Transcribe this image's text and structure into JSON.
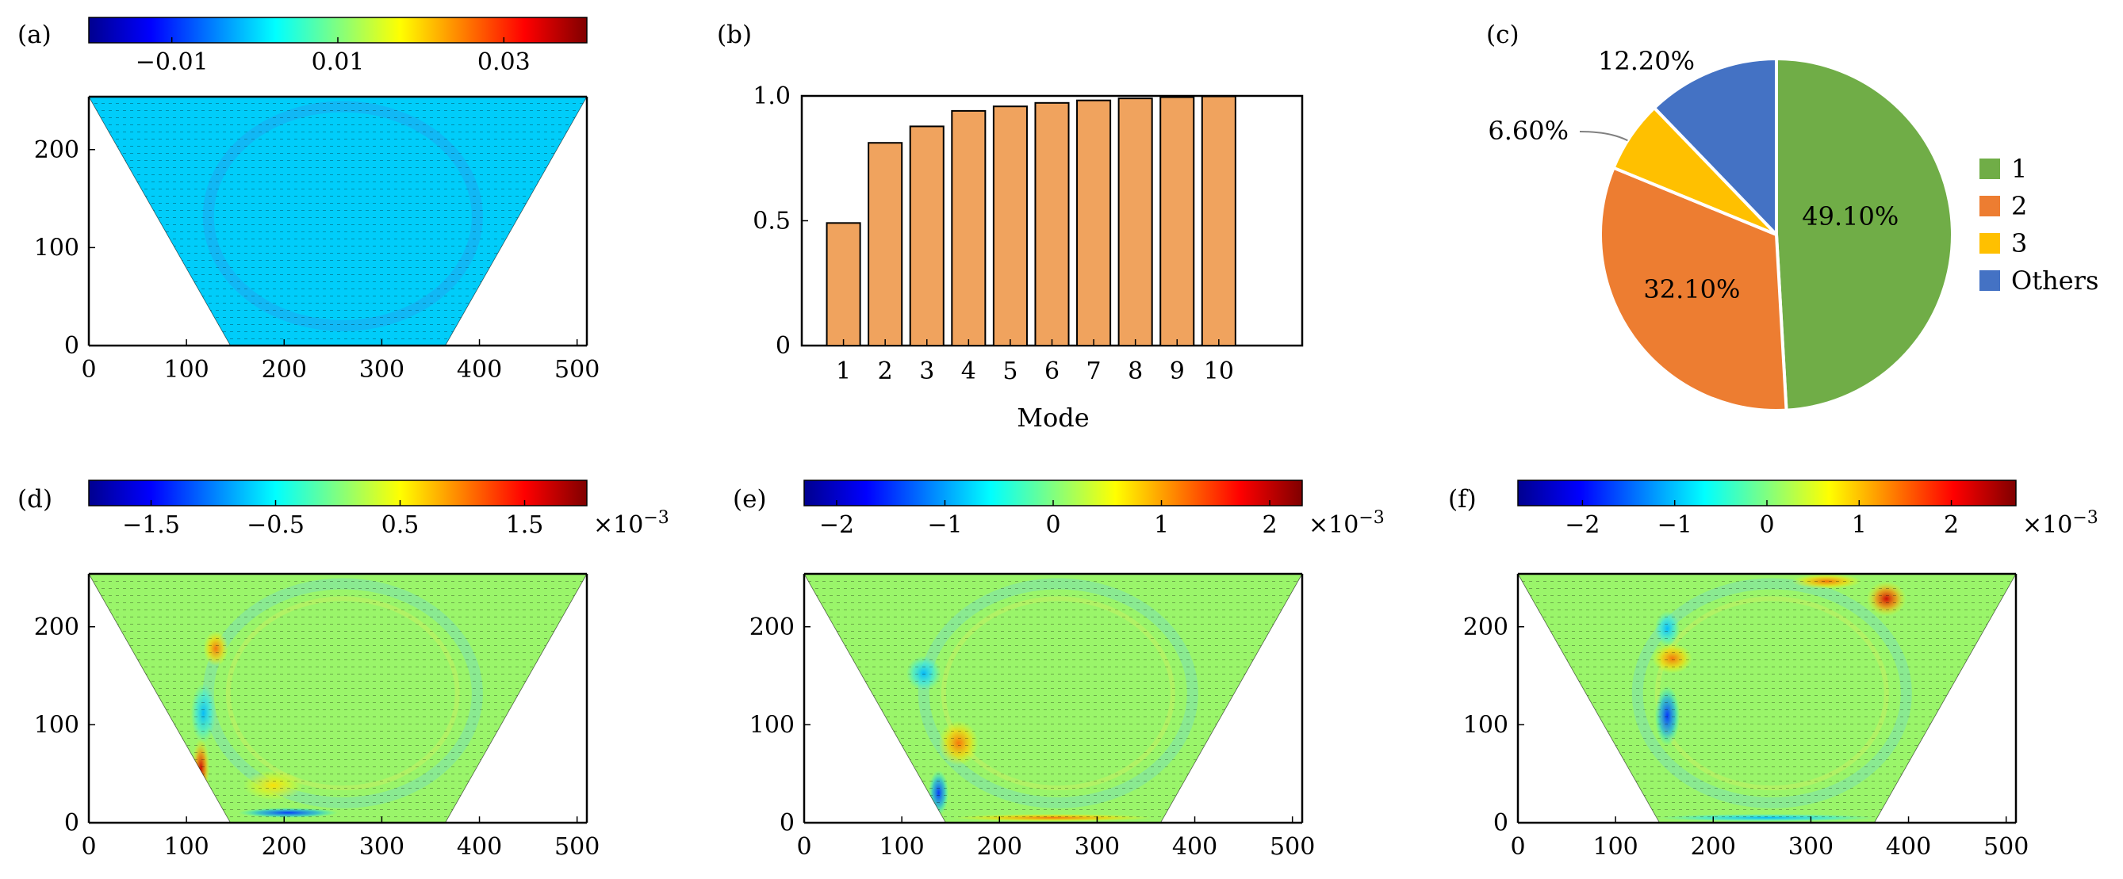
{
  "panels": [
    {
      "id": "a",
      "label": "(a)",
      "kind": "field",
      "colorbar": {
        "ticks": [
          "−0.01",
          "0.01",
          "0.03"
        ],
        "ticks_at": [
          -0.01,
          0.01,
          0.03
        ],
        "range": [
          -0.02,
          0.04
        ],
        "exponent_label": ""
      },
      "x_ticks": [
        "0",
        "100",
        "200",
        "300",
        "400",
        "500"
      ],
      "y_ticks": [
        "0",
        "100",
        "200"
      ],
      "x_range": [
        0,
        510
      ],
      "y_range": [
        0,
        254
      ],
      "field": "mean-flow",
      "base_color": "#00cdfa"
    },
    {
      "id": "d",
      "label": "(d)",
      "kind": "field",
      "colorbar": {
        "ticks": [
          "−1.5",
          "−0.5",
          "0.5",
          "1.5"
        ],
        "ticks_at": [
          -1.5,
          -0.5,
          0.5,
          1.5
        ],
        "range": [
          -2.0,
          2.0
        ],
        "exponent_label": "×10",
        "exponent_power": "−3"
      },
      "x_ticks": [
        "0",
        "100",
        "200",
        "300",
        "400",
        "500"
      ],
      "y_ticks": [
        "0",
        "100",
        "200"
      ],
      "x_range": [
        0,
        510
      ],
      "y_range": [
        0,
        254
      ],
      "field": "mode-1",
      "base_color": "#9af56a"
    },
    {
      "id": "e",
      "label": "(e)",
      "kind": "field",
      "colorbar": {
        "ticks": [
          "−2",
          "−1",
          "0",
          "1",
          "2"
        ],
        "ticks_at": [
          -2,
          -1,
          0,
          1,
          2
        ],
        "range": [
          -2.3,
          2.3
        ],
        "exponent_label": "×10",
        "exponent_power": "−3"
      },
      "x_ticks": [
        "0",
        "100",
        "200",
        "300",
        "400",
        "500"
      ],
      "y_ticks": [
        "0",
        "100",
        "200"
      ],
      "x_range": [
        0,
        510
      ],
      "y_range": [
        0,
        254
      ],
      "field": "mode-2",
      "base_color": "#9af56a"
    },
    {
      "id": "f",
      "label": "(f)",
      "kind": "field",
      "colorbar": {
        "ticks": [
          "−2",
          "−1",
          "0",
          "1",
          "2"
        ],
        "ticks_at": [
          -2,
          -1,
          0,
          1,
          2
        ],
        "range": [
          -2.7,
          2.7
        ],
        "exponent_label": "×10",
        "exponent_power": "−3"
      },
      "x_ticks": [
        "0",
        "100",
        "200",
        "300",
        "400",
        "500"
      ],
      "y_ticks": [
        "0",
        "100",
        "200"
      ],
      "x_range": [
        0,
        510
      ],
      "y_range": [
        0,
        254
      ],
      "field": "mode-3",
      "base_color": "#9af56a"
    }
  ],
  "chart_data": [
    {
      "panel": "(b)",
      "type": "bar",
      "categories": [
        "1",
        "2",
        "3",
        "4",
        "5",
        "6",
        "7",
        "8",
        "9",
        "10"
      ],
      "values": [
        0.491,
        0.812,
        0.878,
        0.94,
        0.958,
        0.972,
        0.982,
        0.99,
        0.995,
        0.998
      ],
      "xlabel": "Mode",
      "ylabel": "",
      "y_ticks": [
        "0",
        "0.5",
        "1.0"
      ],
      "ylim": [
        0,
        1.0
      ],
      "xlim": [
        0,
        12
      ],
      "bar_color": "#f0a35e"
    },
    {
      "panel": "(c)",
      "type": "pie",
      "slices": [
        {
          "label": "1",
          "value": 49.1,
          "text": "49.10%",
          "color": "#70ad47"
        },
        {
          "label": "2",
          "value": 32.1,
          "text": "32.10%",
          "color": "#ed7d31"
        },
        {
          "label": "3",
          "value": 6.6,
          "text": "6.60%",
          "color": "#ffc000"
        },
        {
          "label": "Others",
          "value": 12.2,
          "text": "12.20%",
          "color": "#4472c4"
        }
      ],
      "legend": "right"
    }
  ],
  "jet_colors": [
    "#00008f",
    "#0000ff",
    "#0080ff",
    "#00ffff",
    "#80ff80",
    "#ffff00",
    "#ff8000",
    "#ff0000",
    "#800000"
  ]
}
